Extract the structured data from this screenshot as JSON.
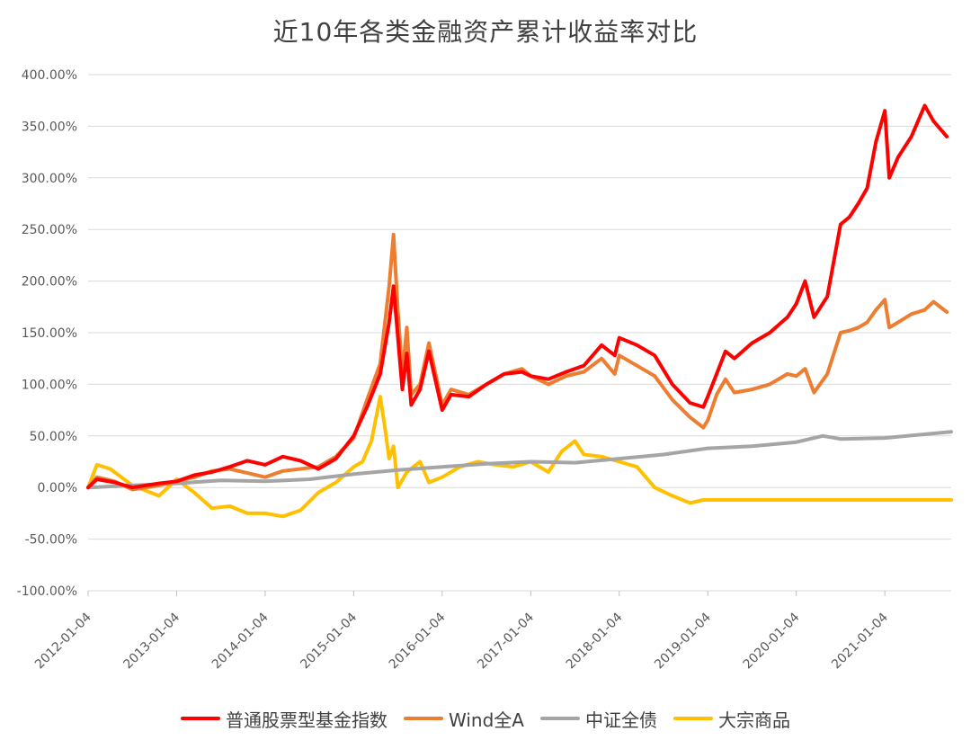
{
  "chart_data": {
    "type": "line",
    "title": "近10年各类金融资产累计收益率对比",
    "y_ticks": [
      "400.00%",
      "350.00%",
      "300.00%",
      "250.00%",
      "200.00%",
      "150.00%",
      "100.00%",
      "50.00%",
      "0.00%",
      "-50.00%",
      "-100.00%"
    ],
    "x_ticks": [
      "2012-01-04",
      "2013-01-04",
      "2014-01-04",
      "2015-01-04",
      "2016-01-04",
      "2017-01-04",
      "2018-01-04",
      "2019-01-04",
      "2020-01-04",
      "2021-01-04"
    ],
    "ylim": [
      -100,
      400
    ],
    "xlim": [
      2012.0,
      2021.75
    ],
    "grid": true,
    "legend_position": "bottom",
    "series": [
      {
        "name": "普通股票型基金指数",
        "color": "#ff0000",
        "points": [
          [
            2012.0,
            0
          ],
          [
            2012.1,
            8
          ],
          [
            2012.3,
            5
          ],
          [
            2012.5,
            0
          ],
          [
            2012.8,
            4
          ],
          [
            2013.0,
            6
          ],
          [
            2013.2,
            12
          ],
          [
            2013.4,
            15
          ],
          [
            2013.6,
            20
          ],
          [
            2013.8,
            26
          ],
          [
            2014.0,
            22
          ],
          [
            2014.2,
            30
          ],
          [
            2014.4,
            26
          ],
          [
            2014.6,
            18
          ],
          [
            2014.8,
            28
          ],
          [
            2015.0,
            50
          ],
          [
            2015.15,
            78
          ],
          [
            2015.3,
            110
          ],
          [
            2015.4,
            160
          ],
          [
            2015.45,
            195
          ],
          [
            2015.5,
            145
          ],
          [
            2015.55,
            95
          ],
          [
            2015.6,
            130
          ],
          [
            2015.65,
            80
          ],
          [
            2015.75,
            95
          ],
          [
            2015.85,
            132
          ],
          [
            2016.0,
            75
          ],
          [
            2016.1,
            90
          ],
          [
            2016.3,
            88
          ],
          [
            2016.5,
            100
          ],
          [
            2016.7,
            110
          ],
          [
            2016.9,
            112
          ],
          [
            2017.0,
            108
          ],
          [
            2017.2,
            105
          ],
          [
            2017.4,
            112
          ],
          [
            2017.6,
            118
          ],
          [
            2017.8,
            138
          ],
          [
            2017.95,
            128
          ],
          [
            2018.0,
            145
          ],
          [
            2018.2,
            138
          ],
          [
            2018.4,
            128
          ],
          [
            2018.6,
            100
          ],
          [
            2018.8,
            82
          ],
          [
            2018.95,
            78
          ],
          [
            2019.0,
            88
          ],
          [
            2019.1,
            110
          ],
          [
            2019.2,
            132
          ],
          [
            2019.3,
            125
          ],
          [
            2019.5,
            140
          ],
          [
            2019.7,
            150
          ],
          [
            2019.9,
            165
          ],
          [
            2020.0,
            178
          ],
          [
            2020.1,
            200
          ],
          [
            2020.2,
            165
          ],
          [
            2020.35,
            185
          ],
          [
            2020.5,
            255
          ],
          [
            2020.6,
            262
          ],
          [
            2020.7,
            275
          ],
          [
            2020.8,
            290
          ],
          [
            2020.9,
            335
          ],
          [
            2021.0,
            365
          ],
          [
            2021.05,
            300
          ],
          [
            2021.15,
            320
          ],
          [
            2021.3,
            340
          ],
          [
            2021.45,
            370
          ],
          [
            2021.55,
            355
          ],
          [
            2021.7,
            340
          ]
        ]
      },
      {
        "name": "Wind全A",
        "color": "#ed7d31",
        "points": [
          [
            2012.0,
            0
          ],
          [
            2012.1,
            10
          ],
          [
            2012.3,
            6
          ],
          [
            2012.5,
            -2
          ],
          [
            2012.8,
            2
          ],
          [
            2013.0,
            6
          ],
          [
            2013.2,
            10
          ],
          [
            2013.4,
            16
          ],
          [
            2013.6,
            18
          ],
          [
            2013.8,
            14
          ],
          [
            2014.0,
            10
          ],
          [
            2014.2,
            16
          ],
          [
            2014.4,
            18
          ],
          [
            2014.6,
            20
          ],
          [
            2014.8,
            30
          ],
          [
            2015.0,
            48
          ],
          [
            2015.15,
            85
          ],
          [
            2015.3,
            120
          ],
          [
            2015.4,
            195
          ],
          [
            2015.45,
            245
          ],
          [
            2015.5,
            170
          ],
          [
            2015.55,
            110
          ],
          [
            2015.6,
            155
          ],
          [
            2015.65,
            90
          ],
          [
            2015.75,
            100
          ],
          [
            2015.85,
            140
          ],
          [
            2016.0,
            80
          ],
          [
            2016.1,
            95
          ],
          [
            2016.3,
            90
          ],
          [
            2016.5,
            100
          ],
          [
            2016.7,
            110
          ],
          [
            2016.9,
            115
          ],
          [
            2017.0,
            108
          ],
          [
            2017.2,
            100
          ],
          [
            2017.4,
            108
          ],
          [
            2017.6,
            112
          ],
          [
            2017.8,
            125
          ],
          [
            2017.95,
            110
          ],
          [
            2018.0,
            128
          ],
          [
            2018.2,
            118
          ],
          [
            2018.4,
            108
          ],
          [
            2018.6,
            85
          ],
          [
            2018.8,
            68
          ],
          [
            2018.95,
            58
          ],
          [
            2019.0,
            65
          ],
          [
            2019.1,
            90
          ],
          [
            2019.2,
            105
          ],
          [
            2019.3,
            92
          ],
          [
            2019.5,
            95
          ],
          [
            2019.7,
            100
          ],
          [
            2019.9,
            110
          ],
          [
            2020.0,
            108
          ],
          [
            2020.1,
            115
          ],
          [
            2020.2,
            92
          ],
          [
            2020.35,
            110
          ],
          [
            2020.5,
            150
          ],
          [
            2020.6,
            152
          ],
          [
            2020.7,
            155
          ],
          [
            2020.8,
            160
          ],
          [
            2020.9,
            172
          ],
          [
            2021.0,
            182
          ],
          [
            2021.05,
            155
          ],
          [
            2021.15,
            160
          ],
          [
            2021.3,
            168
          ],
          [
            2021.45,
            172
          ],
          [
            2021.55,
            180
          ],
          [
            2021.7,
            170
          ]
        ]
      },
      {
        "name": "中证全债",
        "color": "#a5a5a5",
        "points": [
          [
            2012.0,
            0
          ],
          [
            2012.5,
            2
          ],
          [
            2013.0,
            4
          ],
          [
            2013.5,
            7
          ],
          [
            2014.0,
            6
          ],
          [
            2014.5,
            8
          ],
          [
            2015.0,
            13
          ],
          [
            2015.5,
            17
          ],
          [
            2016.0,
            20
          ],
          [
            2016.5,
            23
          ],
          [
            2017.0,
            25
          ],
          [
            2017.5,
            24
          ],
          [
            2018.0,
            28
          ],
          [
            2018.5,
            32
          ],
          [
            2019.0,
            38
          ],
          [
            2019.5,
            40
          ],
          [
            2020.0,
            44
          ],
          [
            2020.3,
            50
          ],
          [
            2020.5,
            47
          ],
          [
            2021.0,
            48
          ],
          [
            2021.5,
            52
          ],
          [
            2021.75,
            54
          ]
        ]
      },
      {
        "name": "大宗商品",
        "color": "#ffc000",
        "points": [
          [
            2012.0,
            0
          ],
          [
            2012.1,
            22
          ],
          [
            2012.25,
            18
          ],
          [
            2012.5,
            2
          ],
          [
            2012.8,
            -8
          ],
          [
            2013.0,
            8
          ],
          [
            2013.2,
            -5
          ],
          [
            2013.4,
            -20
          ],
          [
            2013.6,
            -18
          ],
          [
            2013.8,
            -25
          ],
          [
            2014.0,
            -25
          ],
          [
            2014.2,
            -28
          ],
          [
            2014.4,
            -22
          ],
          [
            2014.6,
            -5
          ],
          [
            2014.8,
            5
          ],
          [
            2015.0,
            20
          ],
          [
            2015.1,
            25
          ],
          [
            2015.2,
            45
          ],
          [
            2015.3,
            88
          ],
          [
            2015.35,
            60
          ],
          [
            2015.4,
            28
          ],
          [
            2015.45,
            40
          ],
          [
            2015.5,
            0
          ],
          [
            2015.6,
            15
          ],
          [
            2015.75,
            25
          ],
          [
            2015.85,
            5
          ],
          [
            2016.0,
            10
          ],
          [
            2016.2,
            20
          ],
          [
            2016.4,
            25
          ],
          [
            2016.6,
            22
          ],
          [
            2016.8,
            20
          ],
          [
            2017.0,
            25
          ],
          [
            2017.2,
            15
          ],
          [
            2017.35,
            35
          ],
          [
            2017.5,
            45
          ],
          [
            2017.6,
            32
          ],
          [
            2017.8,
            30
          ],
          [
            2018.0,
            25
          ],
          [
            2018.2,
            20
          ],
          [
            2018.4,
            0
          ],
          [
            2018.6,
            -8
          ],
          [
            2018.8,
            -15
          ],
          [
            2018.95,
            -12
          ],
          [
            2019.0,
            -12
          ],
          [
            2021.75,
            -12
          ]
        ]
      }
    ]
  }
}
